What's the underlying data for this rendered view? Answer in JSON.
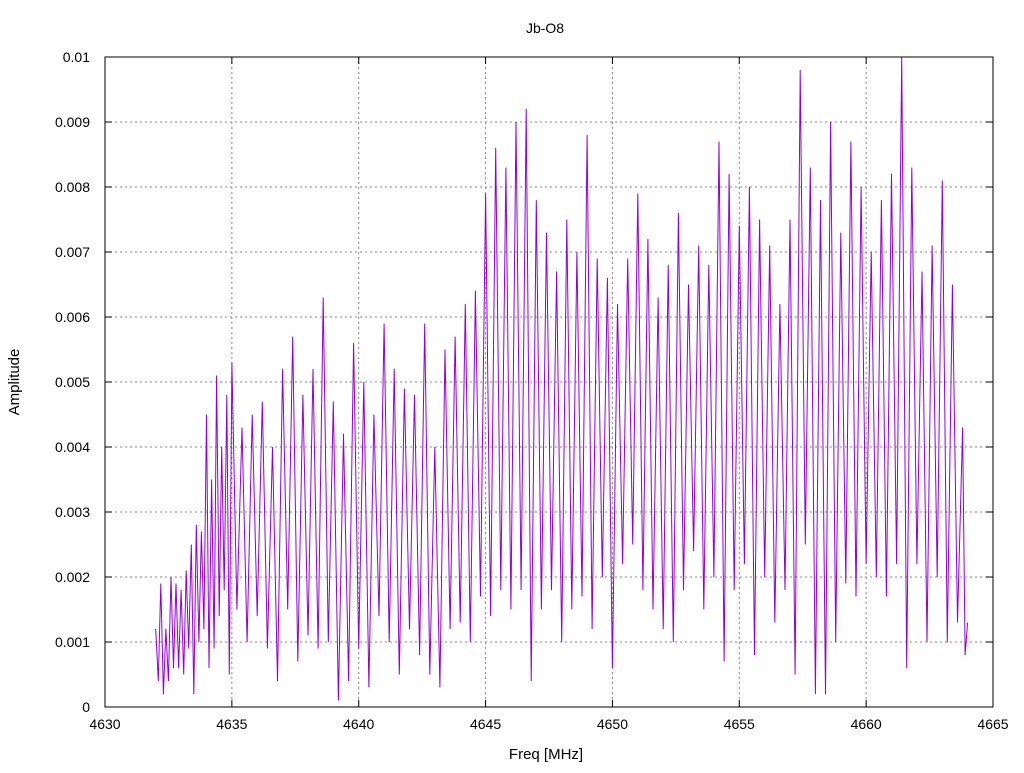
{
  "chart_data": {
    "type": "line",
    "title": "Jb-O8",
    "xlabel": "Freq [MHz]",
    "ylabel": "Amplitude",
    "xlim": [
      4630,
      4665
    ],
    "ylim": [
      0,
      0.01
    ],
    "x_ticks": [
      "4630",
      "4635",
      "4640",
      "4645",
      "4650",
      "4655",
      "4660",
      "4665"
    ],
    "y_ticks": [
      "0",
      "0.001",
      "0.002",
      "0.003",
      "0.004",
      "0.005",
      "0.006",
      "0.007",
      "0.008",
      "0.009",
      "0.01"
    ],
    "grid": true,
    "series": [
      {
        "color": "#9400d3",
        "points": [
          [
            4632.0,
            0.0012
          ],
          [
            4632.1,
            0.0004
          ],
          [
            4632.2,
            0.0019
          ],
          [
            4632.3,
            0.0002
          ],
          [
            4632.4,
            0.0012
          ],
          [
            4632.5,
            0.0004
          ],
          [
            4632.6,
            0.002
          ],
          [
            4632.7,
            0.0006
          ],
          [
            4632.8,
            0.0019
          ],
          [
            4632.9,
            0.0006
          ],
          [
            4633.0,
            0.0018
          ],
          [
            4633.1,
            0.0005
          ],
          [
            4633.2,
            0.0021
          ],
          [
            4633.3,
            0.0009
          ],
          [
            4633.4,
            0.0025
          ],
          [
            4633.5,
            0.0002
          ],
          [
            4633.6,
            0.0028
          ],
          [
            4633.7,
            0.001
          ],
          [
            4633.8,
            0.0027
          ],
          [
            4633.9,
            0.0012
          ],
          [
            4634.0,
            0.0045
          ],
          [
            4634.1,
            0.0006
          ],
          [
            4634.2,
            0.0035
          ],
          [
            4634.3,
            0.0009
          ],
          [
            4634.4,
            0.0051
          ],
          [
            4634.5,
            0.0014
          ],
          [
            4634.6,
            0.004
          ],
          [
            4634.7,
            0.0018
          ],
          [
            4634.8,
            0.0048
          ],
          [
            4634.9,
            0.0005
          ],
          [
            4635.0,
            0.0053
          ],
          [
            4635.2,
            0.0015
          ],
          [
            4635.4,
            0.0043
          ],
          [
            4635.6,
            0.001
          ],
          [
            4635.8,
            0.0045
          ],
          [
            4636.0,
            0.0014
          ],
          [
            4636.2,
            0.0047
          ],
          [
            4636.4,
            0.0009
          ],
          [
            4636.6,
            0.004
          ],
          [
            4636.8,
            0.0004
          ],
          [
            4637.0,
            0.0052
          ],
          [
            4637.2,
            0.0015
          ],
          [
            4637.4,
            0.0057
          ],
          [
            4637.6,
            0.0007
          ],
          [
            4637.8,
            0.0048
          ],
          [
            4638.0,
            0.0011
          ],
          [
            4638.2,
            0.0052
          ],
          [
            4638.4,
            0.0009
          ],
          [
            4638.6,
            0.0063
          ],
          [
            4638.8,
            0.001
          ],
          [
            4639.0,
            0.0047
          ],
          [
            4639.2,
            0.0001
          ],
          [
            4639.4,
            0.0042
          ],
          [
            4639.6,
            0.0004
          ],
          [
            4639.8,
            0.0056
          ],
          [
            4640.0,
            0.0009
          ],
          [
            4640.2,
            0.005
          ],
          [
            4640.4,
            0.0003
          ],
          [
            4640.6,
            0.0045
          ],
          [
            4640.8,
            0.0014
          ],
          [
            4641.0,
            0.0059
          ],
          [
            4641.2,
            0.001
          ],
          [
            4641.4,
            0.0052
          ],
          [
            4641.6,
            0.0005
          ],
          [
            4641.8,
            0.0049
          ],
          [
            4642.0,
            0.0012
          ],
          [
            4642.2,
            0.0048
          ],
          [
            4642.4,
            0.0008
          ],
          [
            4642.6,
            0.0059
          ],
          [
            4642.8,
            0.0005
          ],
          [
            4643.0,
            0.004
          ],
          [
            4643.2,
            0.0003
          ],
          [
            4643.4,
            0.0055
          ],
          [
            4643.6,
            0.0012
          ],
          [
            4643.8,
            0.0057
          ],
          [
            4644.0,
            0.0013
          ],
          [
            4644.2,
            0.0062
          ],
          [
            4644.4,
            0.001
          ],
          [
            4644.6,
            0.0064
          ],
          [
            4644.8,
            0.0017
          ],
          [
            4645.0,
            0.0079
          ],
          [
            4645.2,
            0.0014
          ],
          [
            4645.4,
            0.0086
          ],
          [
            4645.6,
            0.0018
          ],
          [
            4645.8,
            0.0083
          ],
          [
            4646.0,
            0.0015
          ],
          [
            4646.2,
            0.009
          ],
          [
            4646.4,
            0.0018
          ],
          [
            4646.6,
            0.0092
          ],
          [
            4646.8,
            0.0004
          ],
          [
            4647.0,
            0.0078
          ],
          [
            4647.2,
            0.0015
          ],
          [
            4647.4,
            0.0073
          ],
          [
            4647.6,
            0.0018
          ],
          [
            4647.8,
            0.0067
          ],
          [
            4648.0,
            0.001
          ],
          [
            4648.2,
            0.0075
          ],
          [
            4648.4,
            0.0015
          ],
          [
            4648.6,
            0.007
          ],
          [
            4648.8,
            0.0017
          ],
          [
            4649.0,
            0.0088
          ],
          [
            4649.2,
            0.0012
          ],
          [
            4649.4,
            0.0069
          ],
          [
            4649.6,
            0.002
          ],
          [
            4649.8,
            0.0066
          ],
          [
            4650.0,
            0.0006
          ],
          [
            4650.2,
            0.0062
          ],
          [
            4650.4,
            0.0022
          ],
          [
            4650.6,
            0.0069
          ],
          [
            4650.8,
            0.0025
          ],
          [
            4651.0,
            0.0079
          ],
          [
            4651.2,
            0.0018
          ],
          [
            4651.4,
            0.0072
          ],
          [
            4651.6,
            0.0015
          ],
          [
            4651.8,
            0.0063
          ],
          [
            4652.0,
            0.0012
          ],
          [
            4652.2,
            0.0068
          ],
          [
            4652.4,
            0.001
          ],
          [
            4652.6,
            0.0076
          ],
          [
            4652.8,
            0.0018
          ],
          [
            4653.0,
            0.0065
          ],
          [
            4653.2,
            0.0024
          ],
          [
            4653.4,
            0.0071
          ],
          [
            4653.6,
            0.0015
          ],
          [
            4653.8,
            0.0068
          ],
          [
            4654.0,
            0.002
          ],
          [
            4654.2,
            0.0087
          ],
          [
            4654.4,
            0.0007
          ],
          [
            4654.6,
            0.0082
          ],
          [
            4654.8,
            0.0018
          ],
          [
            4655.0,
            0.0074
          ],
          [
            4655.2,
            0.0022
          ],
          [
            4655.4,
            0.008
          ],
          [
            4655.6,
            0.0008
          ],
          [
            4655.8,
            0.0075
          ],
          [
            4656.0,
            0.002
          ],
          [
            4656.2,
            0.0071
          ],
          [
            4656.4,
            0.0013
          ],
          [
            4656.6,
            0.0062
          ],
          [
            4656.8,
            0.0018
          ],
          [
            4657.0,
            0.0075
          ],
          [
            4657.2,
            0.0005
          ],
          [
            4657.4,
            0.0098
          ],
          [
            4657.6,
            0.0025
          ],
          [
            4657.8,
            0.0083
          ],
          [
            4658.0,
            0.0002
          ],
          [
            4658.2,
            0.0078
          ],
          [
            4658.4,
            0.0002
          ],
          [
            4658.6,
            0.009
          ],
          [
            4658.8,
            0.001
          ],
          [
            4659.0,
            0.0073
          ],
          [
            4659.2,
            0.0019
          ],
          [
            4659.4,
            0.0087
          ],
          [
            4659.6,
            0.0017
          ],
          [
            4659.8,
            0.008
          ],
          [
            4660.0,
            0.0022
          ],
          [
            4660.2,
            0.007
          ],
          [
            4660.4,
            0.002
          ],
          [
            4660.6,
            0.0078
          ],
          [
            4660.8,
            0.0017
          ],
          [
            4661.0,
            0.0082
          ],
          [
            4661.2,
            0.0022
          ],
          [
            4661.4,
            0.01
          ],
          [
            4661.6,
            0.0006
          ],
          [
            4661.8,
            0.0083
          ],
          [
            4662.0,
            0.0022
          ],
          [
            4662.2,
            0.0067
          ],
          [
            4662.4,
            0.001
          ],
          [
            4662.6,
            0.0071
          ],
          [
            4662.8,
            0.002
          ],
          [
            4663.0,
            0.0081
          ],
          [
            4663.2,
            0.001
          ],
          [
            4663.4,
            0.0065
          ],
          [
            4663.6,
            0.0013
          ],
          [
            4663.8,
            0.0043
          ],
          [
            4663.9,
            0.0008
          ],
          [
            4664.0,
            0.0013
          ]
        ]
      }
    ]
  }
}
